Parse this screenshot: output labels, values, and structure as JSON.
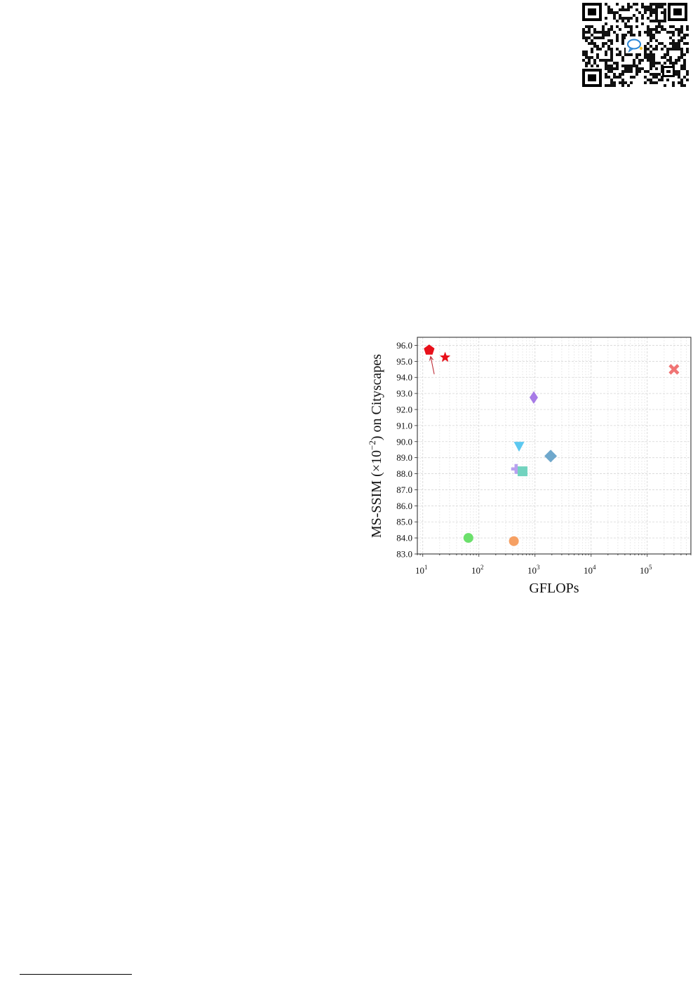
{
  "qr": {
    "icon": "chat-bubble-icon",
    "accent": "#2a86d6"
  },
  "chart_data": {
    "type": "scatter",
    "xlabel": "GFLOPs",
    "ylabel": "MS-SSIM (×10",
    "ylabel_exponent": "−2",
    "ylabel_suffix": ") on Cityscapes",
    "x_scale": "log",
    "xlim": [
      8,
      600000
    ],
    "ylim": [
      83.0,
      96.5
    ],
    "grid": true,
    "x_ticks": [
      10,
      100,
      1000,
      10000,
      100000
    ],
    "x_tick_labels": [
      {
        "base": "10",
        "exp": "1"
      },
      {
        "base": "10",
        "exp": "2"
      },
      {
        "base": "10",
        "exp": "3"
      },
      {
        "base": "10",
        "exp": "4"
      },
      {
        "base": "10",
        "exp": "5"
      }
    ],
    "y_ticks": [
      83.0,
      84.0,
      85.0,
      86.0,
      87.0,
      88.0,
      89.0,
      90.0,
      91.0,
      92.0,
      93.0,
      94.0,
      95.0,
      96.0
    ],
    "y_tick_labels": [
      "83.0",
      "84.0",
      "85.0",
      "86.0",
      "87.0",
      "88.0",
      "89.0",
      "90.0",
      "91.0",
      "92.0",
      "93.0",
      "94.0",
      "95.0",
      "96.0"
    ],
    "points": [
      {
        "x": 13,
        "y": 95.7,
        "marker": "pentagon",
        "color": "#e8101a"
      },
      {
        "x": 25,
        "y": 95.25,
        "marker": "star",
        "color": "#e8101a"
      },
      {
        "x": 300000,
        "y": 94.5,
        "marker": "x",
        "color": "#f07474"
      },
      {
        "x": 950,
        "y": 92.75,
        "marker": "thin-diamond",
        "color": "#a77be6"
      },
      {
        "x": 520,
        "y": 89.7,
        "marker": "triangle-down",
        "color": "#5cc8f0"
      },
      {
        "x": 1900,
        "y": 89.1,
        "marker": "diamond",
        "color": "#6fa8cc"
      },
      {
        "x": 460,
        "y": 88.3,
        "marker": "plus",
        "color": "#b9a1ef"
      },
      {
        "x": 600,
        "y": 88.15,
        "marker": "square",
        "color": "#72d3bf"
      },
      {
        "x": 65,
        "y": 84.0,
        "marker": "circle",
        "color": "#6be06b"
      },
      {
        "x": 420,
        "y": 83.8,
        "marker": "circle",
        "color": "#f6a063"
      }
    ],
    "arrow": {
      "from": {
        "x": 16,
        "y": 94.2
      },
      "to": {
        "x": 13.8,
        "y": 95.3
      },
      "color": "#c0303a"
    }
  }
}
